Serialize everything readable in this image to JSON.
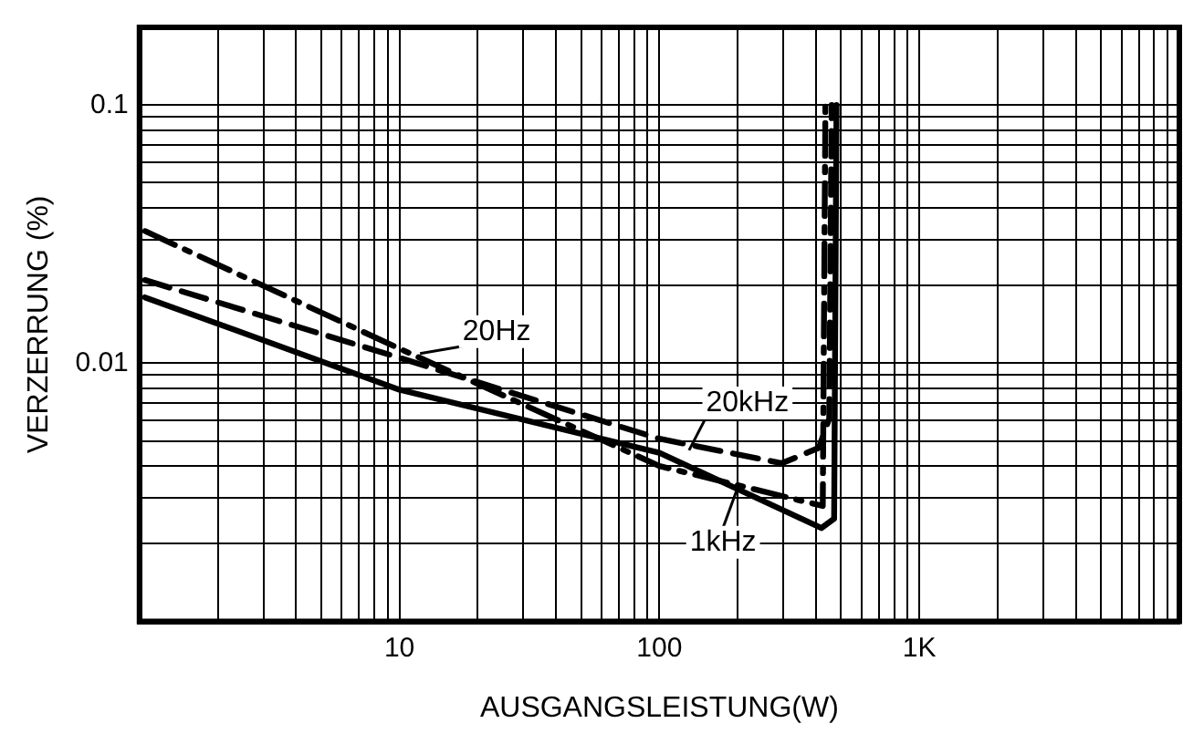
{
  "chart_data": {
    "type": "line",
    "xlabel": "AUSGANGSLEISTUNG(W)",
    "ylabel": "VERZERRUNG (%)",
    "log": "xy",
    "grid": true,
    "xlim": [
      1,
      10000
    ],
    "ylim": [
      0.001,
      0.2
    ],
    "xticks": [
      {
        "value": 2,
        "label": null
      },
      {
        "value": 3,
        "label": null
      },
      {
        "value": 4,
        "label": null
      },
      {
        "value": 5,
        "label": null
      },
      {
        "value": 6,
        "label": null
      },
      {
        "value": 7,
        "label": null
      },
      {
        "value": 8,
        "label": null
      },
      {
        "value": 9,
        "label": null
      },
      10,
      {
        "value": 20,
        "label": null
      },
      {
        "value": 30,
        "label": null
      },
      {
        "value": 40,
        "label": null
      },
      {
        "value": 50,
        "label": null
      },
      {
        "value": 60,
        "label": null
      },
      {
        "value": 70,
        "label": null
      },
      {
        "value": 80,
        "label": null
      },
      {
        "value": 90,
        "label": null
      },
      100,
      {
        "value": 200,
        "label": null
      },
      {
        "value": 300,
        "label": null
      },
      {
        "value": 400,
        "label": null
      },
      {
        "value": 500,
        "label": null
      },
      {
        "value": 600,
        "label": null
      },
      {
        "value": 700,
        "label": null
      },
      {
        "value": 800,
        "label": null
      },
      {
        "value": 900,
        "label": null
      },
      {
        "value": 1000,
        "label": "1K"
      },
      {
        "value": 2000,
        "label": null
      },
      {
        "value": 3000,
        "label": null
      },
      {
        "value": 4000,
        "label": null
      },
      {
        "value": 5000,
        "label": null
      },
      {
        "value": 6000,
        "label": null
      },
      {
        "value": 7000,
        "label": null
      },
      {
        "value": 8000,
        "label": null
      },
      {
        "value": 9000,
        "label": null
      }
    ],
    "yticks": [
      {
        "value": 0.002,
        "label": null
      },
      {
        "value": 0.003,
        "label": null
      },
      {
        "value": 0.004,
        "label": null
      },
      {
        "value": 0.005,
        "label": null
      },
      {
        "value": 0.006,
        "label": null
      },
      {
        "value": 0.007,
        "label": null
      },
      {
        "value": 0.008,
        "label": null
      },
      {
        "value": 0.009,
        "label": null
      },
      0.01,
      {
        "value": 0.02,
        "label": null
      },
      {
        "value": 0.03,
        "label": null
      },
      {
        "value": 0.04,
        "label": null
      },
      {
        "value": 0.05,
        "label": null
      },
      {
        "value": 0.06,
        "label": null
      },
      {
        "value": 0.07,
        "label": null
      },
      {
        "value": 0.08,
        "label": null
      },
      {
        "value": 0.09,
        "label": null
      },
      0.1
    ],
    "series": [
      {
        "color": "#000000",
        "line_style": "solid",
        "x": [
          1.05,
          10,
          100,
          420,
          470,
          480
        ],
        "values": [
          0.018,
          0.0079,
          0.0045,
          0.0023,
          0.0025,
          0.1
        ]
      },
      {
        "color": "#000000",
        "line_style": "dashed",
        "x": [
          1.05,
          10,
          100,
          296,
          410,
          450,
          460
        ],
        "values": [
          0.021,
          0.0105,
          0.0051,
          0.0041,
          0.0047,
          0.0061,
          0.1
        ]
      },
      {
        "color": "#000000",
        "line_style": "dotted",
        "x": [
          1.05,
          10,
          100,
          425,
          435
        ],
        "values": [
          0.0325,
          0.0114,
          0.004,
          0.0028,
          0.1
        ]
      }
    ],
    "annotations": [
      {
        "text": "20Hz",
        "x": 12,
        "y": 0.0109
      },
      {
        "text": "20kHz",
        "x": 130,
        "y": 0.0046
      },
      {
        "text": "1kHz",
        "x": 200,
        "y": 0.0033
      }
    ]
  }
}
